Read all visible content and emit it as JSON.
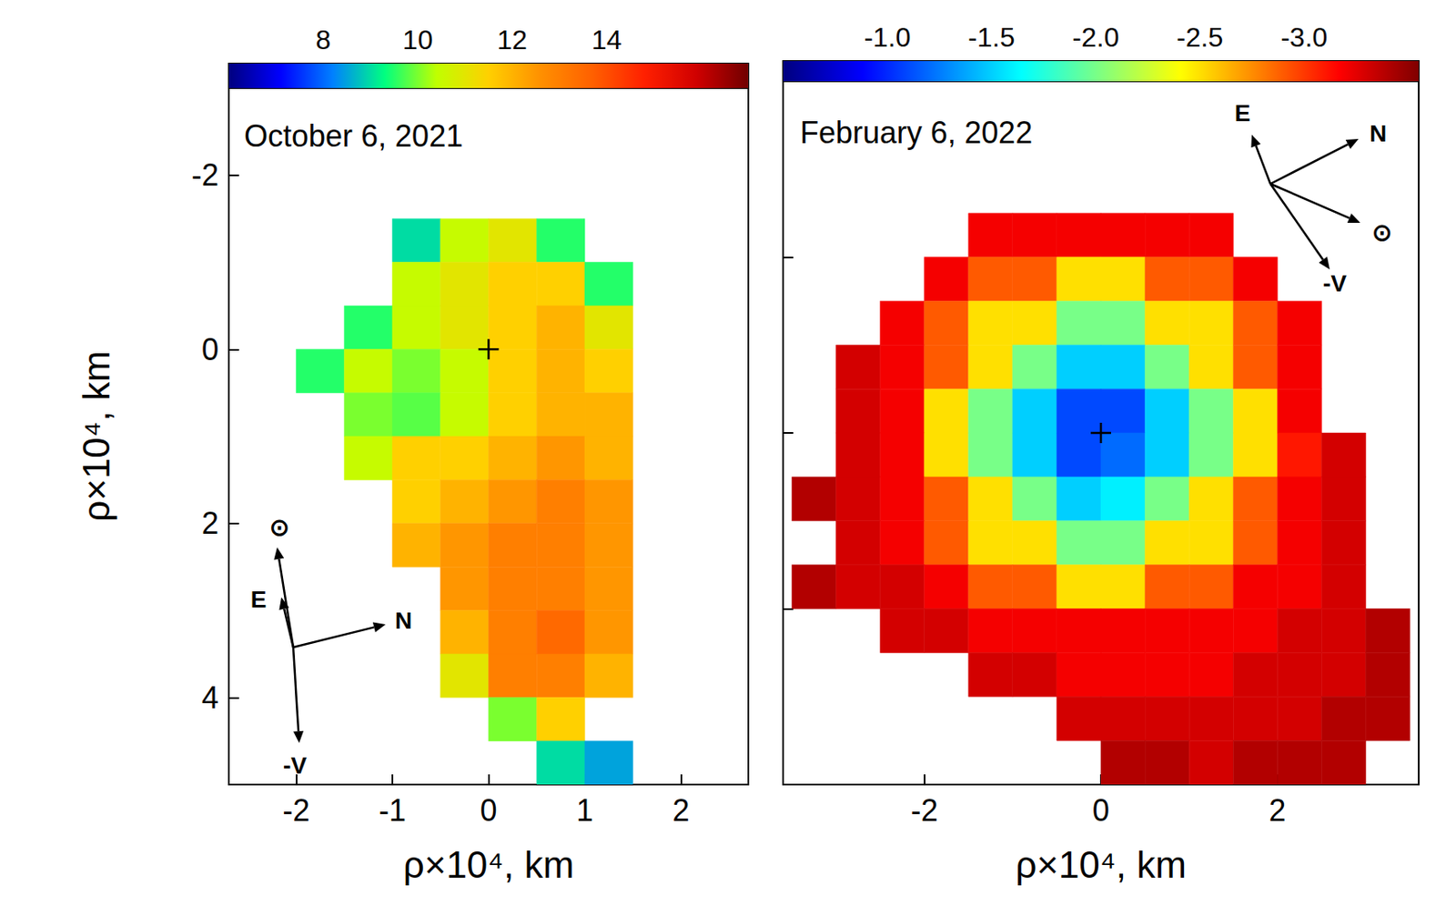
{
  "chart_data": [
    {
      "type": "heatmap",
      "title": "October 6, 2021",
      "x_label": "ρ×10⁴, km",
      "y_label": "ρ×10⁴, km",
      "xlim": [
        -2.7,
        2.7
      ],
      "ylim": [
        5,
        -3
      ],
      "xticks": [
        -2,
        -1,
        0,
        1,
        2
      ],
      "yticks": [
        -2,
        0,
        2,
        4
      ],
      "x": [
        -1.75,
        -1.25,
        -0.75,
        -0.25,
        0.25,
        0.75,
        1.25,
        1.75
      ],
      "y": [
        -1.25,
        -0.75,
        -0.25,
        0.25,
        0.75,
        1.25,
        1.75,
        2.25,
        2.75,
        3.25,
        3.75,
        4.25,
        4.75
      ],
      "cells": [
        [
          null,
          null,
          9,
          10.5,
          11,
          9.5,
          null,
          null
        ],
        [
          null,
          null,
          10.5,
          11,
          11.5,
          11.5,
          9.5,
          null
        ],
        [
          null,
          9.5,
          10.5,
          11,
          11.5,
          12,
          11,
          null
        ],
        [
          9.5,
          10.5,
          10,
          10.5,
          11.5,
          12,
          11.5,
          null
        ],
        [
          null,
          10,
          9.8,
          10.5,
          11.5,
          12,
          12,
          null
        ],
        [
          null,
          10.5,
          11.5,
          11.5,
          12,
          12.5,
          12,
          null
        ],
        [
          null,
          null,
          11.5,
          12,
          12.5,
          13,
          12.5,
          null
        ],
        [
          null,
          null,
          12,
          12.5,
          13,
          13,
          12.5,
          null
        ],
        [
          null,
          null,
          null,
          12.5,
          13,
          13,
          12.5,
          null
        ],
        [
          null,
          null,
          null,
          12,
          13,
          13.5,
          12.5,
          null
        ],
        [
          null,
          null,
          null,
          11,
          13,
          13,
          12,
          null
        ],
        [
          null,
          null,
          null,
          null,
          10,
          11.5,
          null,
          null
        ],
        [
          null,
          null,
          null,
          null,
          null,
          9,
          8.5,
          null
        ]
      ],
      "colorbar": {
        "range": [
          6,
          17
        ],
        "ticks": [
          8,
          10,
          12,
          14
        ]
      },
      "nucleus": [
        0,
        0
      ],
      "compass": [
        "⊙",
        "E",
        "N",
        "-V"
      ]
    },
    {
      "type": "heatmap",
      "title": "February 6, 2022",
      "x_label": "ρ×10⁴, km",
      "xlim": [
        -3.6,
        3.6
      ],
      "ylim": [
        4,
        -4
      ],
      "xticks": [
        -2,
        0,
        2
      ],
      "yticks": [
        -2,
        0,
        2
      ],
      "tick_labels": "x",
      "x": [
        -3.25,
        -2.75,
        -2.25,
        -1.75,
        -1.25,
        -0.75,
        -0.25,
        0.25,
        0.75,
        1.25,
        1.75,
        2.25,
        2.75,
        3.25
      ],
      "y": [
        -2.75,
        -2.25,
        -1.75,
        -1.25,
        -0.75,
        -0.25,
        0.25,
        0.75,
        1.25,
        1.75,
        2.25,
        2.75,
        3.25,
        3.75
      ],
      "cells": [
        [
          null,
          null,
          null,
          null,
          null,
          null,
          null,
          null,
          null,
          null,
          null,
          null,
          null,
          null
        ],
        [
          null,
          null,
          null,
          null,
          -3.2,
          -3.2,
          -3.2,
          -3.2,
          -3.2,
          -3.2,
          null,
          null,
          null,
          null
        ],
        [
          null,
          null,
          null,
          -3.2,
          -2.9,
          -2.9,
          -2.5,
          -2.5,
          -2.9,
          -2.9,
          -3.2,
          null,
          null,
          null
        ],
        [
          null,
          null,
          -3.2,
          -2.9,
          -2.5,
          -2.5,
          -2.0,
          -2.0,
          -2.5,
          -2.5,
          -2.9,
          -3.2,
          null,
          null
        ],
        [
          null,
          -3.3,
          -3.2,
          -2.9,
          -2.5,
          -2.0,
          -1.5,
          -1.5,
          -2.0,
          -2.5,
          -2.9,
          -3.2,
          null,
          null
        ],
        [
          null,
          -3.3,
          -3.2,
          -2.5,
          -2.0,
          -1.5,
          -1.1,
          -1.1,
          -1.5,
          -2.0,
          -2.5,
          -3.2,
          null,
          null
        ],
        [
          null,
          -3.3,
          -3.2,
          -2.5,
          -2.0,
          -1.5,
          -1.1,
          -1.2,
          -1.5,
          -2.0,
          -2.5,
          -3.1,
          -3.3,
          null
        ],
        [
          -3.4,
          -3.3,
          -3.2,
          -2.9,
          -2.5,
          -2.0,
          -1.5,
          -1.6,
          -2.0,
          -2.5,
          -2.9,
          -3.2,
          -3.3,
          null
        ],
        [
          null,
          -3.3,
          -3.2,
          -2.9,
          -2.5,
          -2.5,
          -2.0,
          -2.0,
          -2.5,
          -2.5,
          -2.9,
          -3.2,
          -3.3,
          null
        ],
        [
          -3.4,
          -3.3,
          -3.3,
          -3.2,
          -2.9,
          -2.9,
          -2.5,
          -2.5,
          -2.9,
          -2.9,
          -3.2,
          -3.2,
          -3.3,
          null
        ],
        [
          null,
          null,
          -3.3,
          -3.3,
          -3.2,
          -3.2,
          -3.2,
          -3.2,
          -3.2,
          -3.2,
          -3.2,
          -3.3,
          -3.3,
          -3.4
        ],
        [
          null,
          null,
          null,
          null,
          -3.3,
          -3.3,
          -3.2,
          -3.2,
          -3.2,
          -3.2,
          -3.3,
          -3.3,
          -3.3,
          -3.4
        ],
        [
          null,
          null,
          null,
          null,
          null,
          null,
          -3.3,
          -3.3,
          -3.3,
          -3.3,
          -3.3,
          -3.3,
          -3.4,
          -3.4
        ],
        [
          null,
          null,
          null,
          null,
          null,
          null,
          null,
          -3.4,
          -3.4,
          -3.3,
          -3.4,
          -3.4,
          -3.4,
          null
        ]
      ],
      "colorbar": {
        "range": [
          -0.5,
          -3.55
        ],
        "ticks": [
          {
            "value": -1,
            "label": "-1.0"
          },
          {
            "value": -1.5,
            "label": "-1.5"
          },
          {
            "value": -2,
            "label": "-2.0"
          },
          {
            "value": -2.5,
            "label": "-2.5"
          },
          {
            "value": -3,
            "label": "-3.0"
          }
        ]
      },
      "nucleus": [
        0,
        0
      ],
      "compass": [
        "E",
        "N",
        "⊙",
        "-V"
      ]
    }
  ]
}
